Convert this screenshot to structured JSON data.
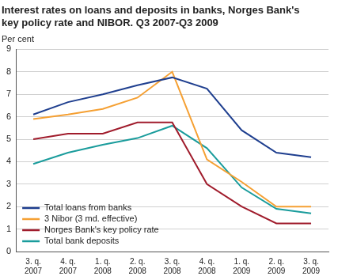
{
  "chart_data": {
    "type": "line",
    "title": "Interest rates on loans and deposits in banks, Norges Bank's key policy rate and NIBOR. Q3 2007-Q3 2009",
    "y_label": "Per cent",
    "categories": [
      "3. q. 2007",
      "4. q. 2007",
      "1. q. 2008",
      "2. q. 2008",
      "3. q. 2008",
      "4. q. 2008",
      "1. q. 2009",
      "2. q. 2009",
      "3. q. 2009"
    ],
    "series": [
      {
        "name": "Total loans from banks",
        "color": "#1f3f8f",
        "values": [
          6.1,
          6.65,
          7.0,
          7.4,
          7.75,
          7.25,
          5.4,
          4.4,
          4.2
        ]
      },
      {
        "name": "3 Nibor (3 md. effective)",
        "color": "#f5a033",
        "values": [
          5.9,
          6.1,
          6.35,
          6.85,
          8.0,
          4.1,
          3.1,
          2.0,
          2.0
        ]
      },
      {
        "name": "Norges Bank's key policy rate",
        "color": "#a01c2c",
        "values": [
          5.0,
          5.25,
          5.25,
          5.75,
          5.75,
          3.0,
          2.0,
          1.25,
          1.25
        ]
      },
      {
        "name": "Total bank deposits",
        "color": "#1a9c9c",
        "values": [
          3.9,
          4.4,
          4.75,
          5.05,
          5.6,
          4.6,
          2.85,
          1.9,
          1.7
        ]
      }
    ],
    "ylim": [
      0,
      9
    ],
    "yticks": [
      0,
      1,
      2,
      3,
      4,
      5,
      6,
      7,
      8,
      9
    ],
    "grid": true,
    "legend": "lower left"
  }
}
